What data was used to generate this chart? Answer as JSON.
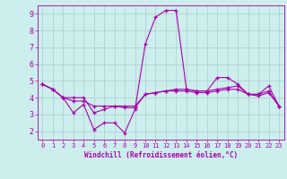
{
  "xlabel": "Windchill (Refroidissement éolien,°C)",
  "xlim": [
    -0.5,
    23.5
  ],
  "ylim": [
    1.5,
    9.5
  ],
  "yticks": [
    2,
    3,
    4,
    5,
    6,
    7,
    8,
    9
  ],
  "xticks": [
    0,
    1,
    2,
    3,
    4,
    5,
    6,
    7,
    8,
    9,
    10,
    11,
    12,
    13,
    14,
    15,
    16,
    17,
    18,
    19,
    20,
    21,
    22,
    23
  ],
  "background_color": "#cceeed",
  "grid_color": "#aacccc",
  "line_color": "#aa00aa",
  "series1_x": [
    0,
    1,
    2,
    3,
    4,
    5,
    6,
    7,
    8,
    9,
    10,
    11,
    12,
    13,
    14,
    15,
    16,
    17,
    18,
    19,
    20,
    21,
    22,
    23
  ],
  "series1_y": [
    4.8,
    4.5,
    4.0,
    3.1,
    3.6,
    2.1,
    2.5,
    2.5,
    1.9,
    3.3,
    7.2,
    8.8,
    9.2,
    9.2,
    4.5,
    4.4,
    4.4,
    5.2,
    5.2,
    4.8,
    4.2,
    4.2,
    4.7,
    3.5
  ],
  "series2_x": [
    0,
    1,
    2,
    3,
    4,
    5,
    6,
    7,
    8,
    9,
    10,
    11,
    12,
    13,
    14,
    15,
    16,
    17,
    18,
    19,
    20,
    21,
    22,
    23
  ],
  "series2_y": [
    4.8,
    4.5,
    4.0,
    4.0,
    4.0,
    3.1,
    3.3,
    3.5,
    3.4,
    3.4,
    4.2,
    4.3,
    4.4,
    4.5,
    4.5,
    4.4,
    4.4,
    4.5,
    4.6,
    4.7,
    4.2,
    4.2,
    4.4,
    3.5
  ],
  "series3_x": [
    0,
    1,
    2,
    3,
    4,
    5,
    6,
    7,
    8,
    9,
    10,
    11,
    12,
    13,
    14,
    15,
    16,
    17,
    18,
    19,
    20,
    21,
    22,
    23
  ],
  "series3_y": [
    4.8,
    4.5,
    4.0,
    3.8,
    3.8,
    3.5,
    3.5,
    3.5,
    3.5,
    3.5,
    4.2,
    4.3,
    4.4,
    4.4,
    4.4,
    4.3,
    4.3,
    4.4,
    4.5,
    4.5,
    4.2,
    4.1,
    4.3,
    3.5
  ]
}
